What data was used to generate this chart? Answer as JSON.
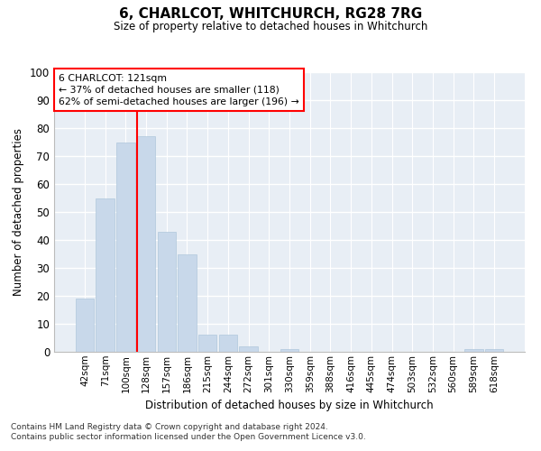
{
  "title": "6, CHARLCOT, WHITCHURCH, RG28 7RG",
  "subtitle": "Size of property relative to detached houses in Whitchurch",
  "xlabel": "Distribution of detached houses by size in Whitchurch",
  "ylabel": "Number of detached properties",
  "bar_color": "#c8d8ea",
  "bar_edge_color": "#b0c8dc",
  "background_color": "#e8eef5",
  "grid_color": "#ffffff",
  "bin_labels": [
    "42sqm",
    "71sqm",
    "100sqm",
    "128sqm",
    "157sqm",
    "186sqm",
    "215sqm",
    "244sqm",
    "272sqm",
    "301sqm",
    "330sqm",
    "359sqm",
    "388sqm",
    "416sqm",
    "445sqm",
    "474sqm",
    "503sqm",
    "532sqm",
    "560sqm",
    "589sqm",
    "618sqm"
  ],
  "bar_heights": [
    19,
    55,
    75,
    77,
    43,
    35,
    6,
    6,
    2,
    0,
    1,
    0,
    0,
    0,
    0,
    0,
    0,
    0,
    0,
    1,
    1
  ],
  "ylim": [
    0,
    100
  ],
  "yticks": [
    0,
    10,
    20,
    30,
    40,
    50,
    60,
    70,
    80,
    90,
    100
  ],
  "marker_bin_index": 3,
  "bar_width": 0.9,
  "marker_label": "6 CHARLCOT: 121sqm",
  "annotation_line1": "← 37% of detached houses are smaller (118)",
  "annotation_line2": "62% of semi-detached houses are larger (196) →",
  "footer_line1": "Contains HM Land Registry data © Crown copyright and database right 2024.",
  "footer_line2": "Contains public sector information licensed under the Open Government Licence v3.0."
}
